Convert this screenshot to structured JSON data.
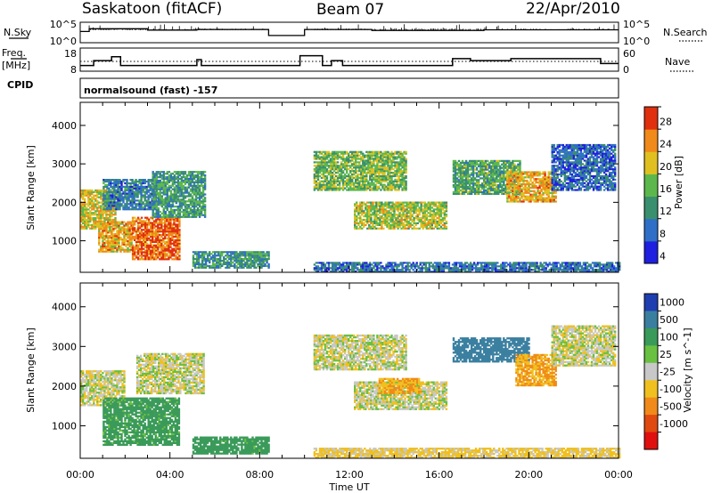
{
  "header": {
    "station_title": "Saskatoon (fitACF)",
    "beam_title": "Beam 07",
    "date_title": "22/Apr/2010"
  },
  "top_panels": {
    "nsky_label": "N.Sky",
    "nsky_tick_top": "10^5",
    "nsky_tick_bottom": "10^0",
    "nsearch_tick_top": "10^5",
    "nsearch_tick_bottom": "10^0",
    "nsearch_label": "N.Search",
    "freq_label_1": "Freq.",
    "freq_label_2": "[MHz]",
    "freq_tick_top": "18",
    "freq_tick_bottom": "8",
    "nave_tick_top": "60",
    "nave_tick_bottom": "0",
    "nave_label": "Nave",
    "cpid_label": "CPID",
    "cpid_text": "normalsound (fast) -157"
  },
  "chart_data": [
    {
      "type": "heatmap",
      "panel": "power",
      "ylabel": "Slant Range [km]",
      "y_ticks": [
        "1000",
        "2000",
        "3000",
        "4000"
      ],
      "ylim": [
        180,
        4600
      ],
      "xlim": [
        0,
        24
      ],
      "colorbar_label": "Power [dB]",
      "colorbar_ticks": [
        "4",
        "8",
        "12",
        "16",
        "20",
        "24",
        "28"
      ],
      "colorbar_colors": [
        "#1f1fe0",
        "#2f6fc8",
        "#3a8f6e",
        "#5cb84c",
        "#e0c020",
        "#f08a1a",
        "#e03010"
      ],
      "regions": [
        {
          "t0": 0.0,
          "t1": 1.6,
          "r0": 1300,
          "r1": 2300,
          "v": 20
        },
        {
          "t0": 0.8,
          "t1": 2.3,
          "r0": 700,
          "r1": 1500,
          "v": 22
        },
        {
          "t0": 2.3,
          "t1": 4.4,
          "r0": 500,
          "r1": 1600,
          "v": 26
        },
        {
          "t0": 1.0,
          "t1": 3.4,
          "r0": 1800,
          "r1": 2600,
          "v": 10
        },
        {
          "t0": 3.2,
          "t1": 5.6,
          "r0": 1600,
          "r1": 2800,
          "v": 13
        },
        {
          "t0": 5.0,
          "t1": 8.4,
          "r0": 280,
          "r1": 700,
          "v": 12
        },
        {
          "t0": 10.4,
          "t1": 14.5,
          "r0": 2300,
          "r1": 3300,
          "v": 16
        },
        {
          "t0": 12.2,
          "t1": 16.3,
          "r0": 1300,
          "r1": 2000,
          "v": 18
        },
        {
          "t0": 16.6,
          "t1": 19.6,
          "r0": 2200,
          "r1": 3100,
          "v": 14
        },
        {
          "t0": 19.0,
          "t1": 21.2,
          "r0": 2000,
          "r1": 2800,
          "v": 22
        },
        {
          "t0": 21.0,
          "t1": 23.8,
          "r0": 2300,
          "r1": 3500,
          "v": 8
        },
        {
          "t0": 10.4,
          "t1": 24.0,
          "r0": 180,
          "r1": 420,
          "v": 9
        }
      ]
    },
    {
      "type": "heatmap",
      "panel": "velocity",
      "ylabel": "Slant Range [km]",
      "y_ticks": [
        "1000",
        "2000",
        "3000",
        "4000"
      ],
      "ylim": [
        180,
        4600
      ],
      "xlim": [
        0,
        24
      ],
      "xlabel": "Time UT",
      "x_ticks": [
        "00:00",
        "04:00",
        "08:00",
        "12:00",
        "16:00",
        "20:00",
        "00:00"
      ],
      "colorbar_label": "Velocity [m s^-1]",
      "colorbar_ticks": [
        "1000",
        "500",
        "100",
        "25",
        "-25",
        "-100",
        "-500",
        "-1000"
      ],
      "colorbar_colors": [
        "#1f3fb0",
        "#3a7fa0",
        "#3a9a5a",
        "#6ac040",
        "#c8c8c8",
        "#f0c020",
        "#f08a1a",
        "#e04a10",
        "#e01010"
      ],
      "regions": [
        {
          "t0": 0.0,
          "t1": 2.0,
          "r0": 1500,
          "r1": 2400,
          "v": 0
        },
        {
          "t0": 1.0,
          "t1": 4.4,
          "r0": 500,
          "r1": 1700,
          "v": 110
        },
        {
          "t0": 2.5,
          "t1": 5.5,
          "r0": 1800,
          "r1": 2800,
          "v": 0
        },
        {
          "t0": 5.0,
          "t1": 8.4,
          "r0": 280,
          "r1": 700,
          "v": 120
        },
        {
          "t0": 10.4,
          "t1": 14.5,
          "r0": 2400,
          "r1": 3300,
          "v": 0
        },
        {
          "t0": 12.2,
          "t1": 16.3,
          "r0": 1400,
          "r1": 2100,
          "v": 0
        },
        {
          "t0": 13.3,
          "t1": 15.2,
          "r0": 1800,
          "r1": 2200,
          "v": -300
        },
        {
          "t0": 16.6,
          "t1": 20.0,
          "r0": 2600,
          "r1": 3200,
          "v": 400
        },
        {
          "t0": 19.4,
          "t1": 21.2,
          "r0": 2000,
          "r1": 2800,
          "v": -300
        },
        {
          "t0": 21.0,
          "t1": 23.8,
          "r0": 2500,
          "r1": 3500,
          "v": 0
        },
        {
          "t0": 10.4,
          "t1": 24.0,
          "r0": 180,
          "r1": 420,
          "v": -50
        }
      ]
    }
  ],
  "frequency_series": {
    "ylim": [
      8,
      18
    ],
    "t": [
      0.0,
      0.6,
      0.6,
      1.4,
      1.4,
      1.8,
      1.8,
      5.2,
      5.2,
      5.4,
      5.4,
      9.8,
      9.8,
      10.8,
      10.8,
      11.2,
      11.2,
      11.7,
      11.7,
      16.6,
      16.6,
      17.4,
      17.4,
      19.2,
      19.2,
      23.2,
      23.2,
      24.0
    ],
    "v": [
      10,
      10,
      12.5,
      12.5,
      14.5,
      14.5,
      10,
      10,
      13,
      13,
      10,
      10,
      15,
      15,
      10,
      10,
      12.5,
      12.5,
      10,
      10,
      13.5,
      13.5,
      12.5,
      12.5,
      13.5,
      13.5,
      11,
      11
    ]
  },
  "nsky_steps": {
    "ylim": [
      0,
      5
    ],
    "t": [
      0.0,
      0.4,
      0.4,
      3.0,
      3.0,
      5.2,
      5.2,
      8.4,
      8.4,
      10.0,
      10.0,
      13.0,
      13.0,
      18.0,
      18.0,
      24.0
    ],
    "v": [
      2.8,
      2.8,
      3.6,
      3.6,
      3.2,
      3.2,
      3.4,
      3.4,
      1.6,
      1.6,
      3.4,
      3.4,
      3.1,
      3.1,
      3.3,
      3.3
    ]
  }
}
